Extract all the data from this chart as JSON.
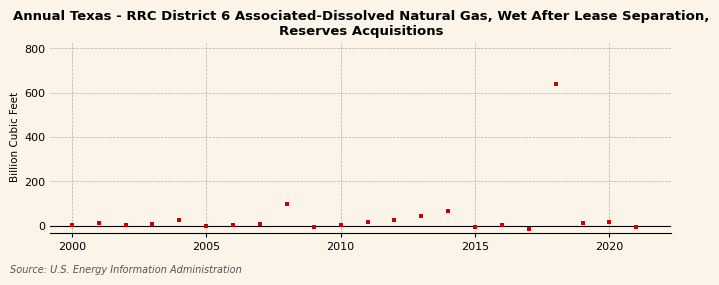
{
  "title": "Annual Texas - RRC District 6 Associated-Dissolved Natural Gas, Wet After Lease Separation,\nReserves Acquisitions",
  "ylabel": "Billion Cubic Feet",
  "source": "Source: U.S. Energy Information Administration",
  "background_color": "#faf5e8",
  "marker_color": "#cc0000",
  "years": [
    2000,
    2001,
    2002,
    2003,
    2004,
    2005,
    2006,
    2007,
    2008,
    2009,
    2010,
    2011,
    2012,
    2013,
    2014,
    2015,
    2016,
    2017,
    2018,
    2019,
    2020,
    2021
  ],
  "values": [
    2,
    15,
    3,
    8,
    28,
    -2,
    4,
    8,
    98,
    -5,
    3,
    18,
    28,
    45,
    65,
    -4,
    4,
    -12,
    640,
    12,
    18,
    -3
  ],
  "xlim": [
    1999.2,
    2022.3
  ],
  "ylim": [
    -30,
    830
  ],
  "yticks": [
    0,
    200,
    400,
    600,
    800
  ],
  "xticks": [
    2000,
    2005,
    2010,
    2015,
    2020
  ],
  "grid_color": "#b0b0b0",
  "title_fontsize": 9.5,
  "label_fontsize": 7.5,
  "tick_fontsize": 8,
  "source_fontsize": 7
}
